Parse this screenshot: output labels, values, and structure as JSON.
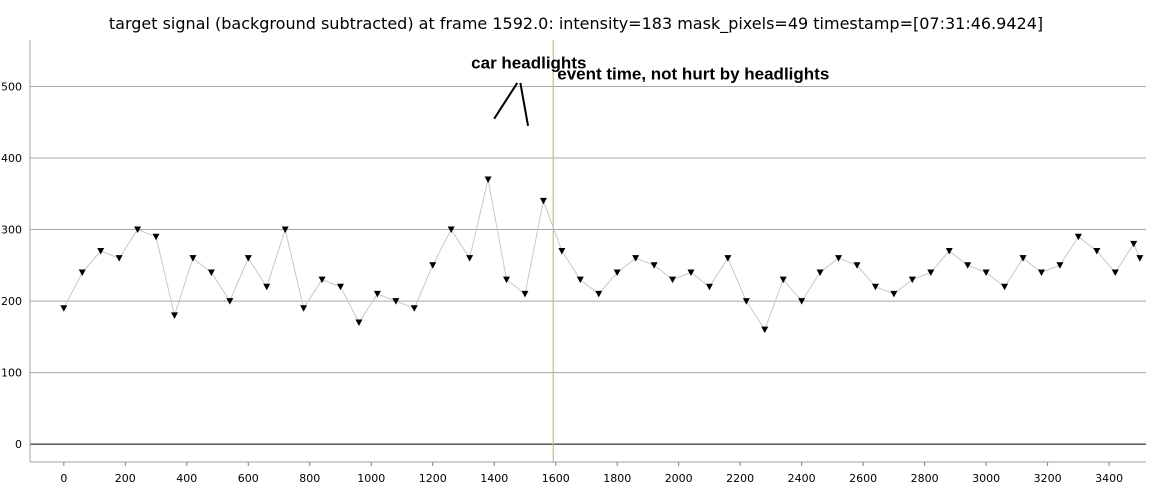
{
  "chart_data": {
    "type": "line",
    "title": "target signal (background subtracted) at frame 1592.0: intensity=183 mask_pixels=49 timestamp=[07:31:46.9424]",
    "xlabel": "",
    "ylabel": "",
    "xlim": [
      -110,
      3520
    ],
    "ylim": [
      -25,
      565
    ],
    "x_ticks": [
      0,
      200,
      400,
      600,
      800,
      1000,
      1200,
      1400,
      1600,
      1800,
      2000,
      2200,
      2400,
      2600,
      2800,
      3000,
      3200,
      3400
    ],
    "y_ticks": [
      0,
      100,
      200,
      300,
      400,
      500
    ],
    "grid": "horizontal",
    "marker": "triangle-down",
    "line_color": "#c8c8c8",
    "marker_color": "#000000",
    "event_line": {
      "x": 1592,
      "color": "#b8c87a"
    },
    "annotations": [
      {
        "text": "car headlights",
        "x": 1325,
        "y": 525
      },
      {
        "text": "event time, not hurt by headlights",
        "x": 1605,
        "y": 510
      }
    ],
    "arrows": [
      {
        "from": [
          1475,
          505
        ],
        "to": [
          1400,
          455
        ]
      },
      {
        "from": [
          1485,
          505
        ],
        "to": [
          1510,
          445
        ]
      }
    ],
    "series": [
      {
        "x": [
          0,
          60,
          120,
          180,
          240,
          300,
          360,
          420,
          480,
          540,
          600,
          660,
          720,
          780,
          840,
          900,
          960,
          1020,
          1080,
          1140,
          1200,
          1260,
          1320,
          1380,
          1440,
          1500,
          1560,
          1620,
          1680,
          1740,
          1800,
          1860,
          1920,
          1980,
          2040,
          2100,
          2160,
          2220,
          2280,
          2340,
          2400,
          2460,
          2520,
          2580,
          2640,
          2700,
          2760,
          2820,
          2880,
          2940,
          3000,
          3060,
          3120,
          3180,
          3240,
          3300,
          3360,
          3420,
          3480,
          3500
        ],
        "y": [
          190,
          240,
          270,
          260,
          300,
          290,
          180,
          260,
          240,
          200,
          260,
          220,
          300,
          190,
          230,
          220,
          170,
          210,
          200,
          190,
          250,
          300,
          260,
          370,
          230,
          210,
          340,
          270,
          230,
          210,
          240,
          260,
          250,
          230,
          240,
          220,
          260,
          200,
          160,
          230,
          200,
          240,
          260,
          250,
          220,
          210,
          230,
          240,
          270,
          250,
          240,
          220,
          260,
          240,
          250,
          290,
          270,
          240,
          280,
          260
        ]
      }
    ]
  }
}
